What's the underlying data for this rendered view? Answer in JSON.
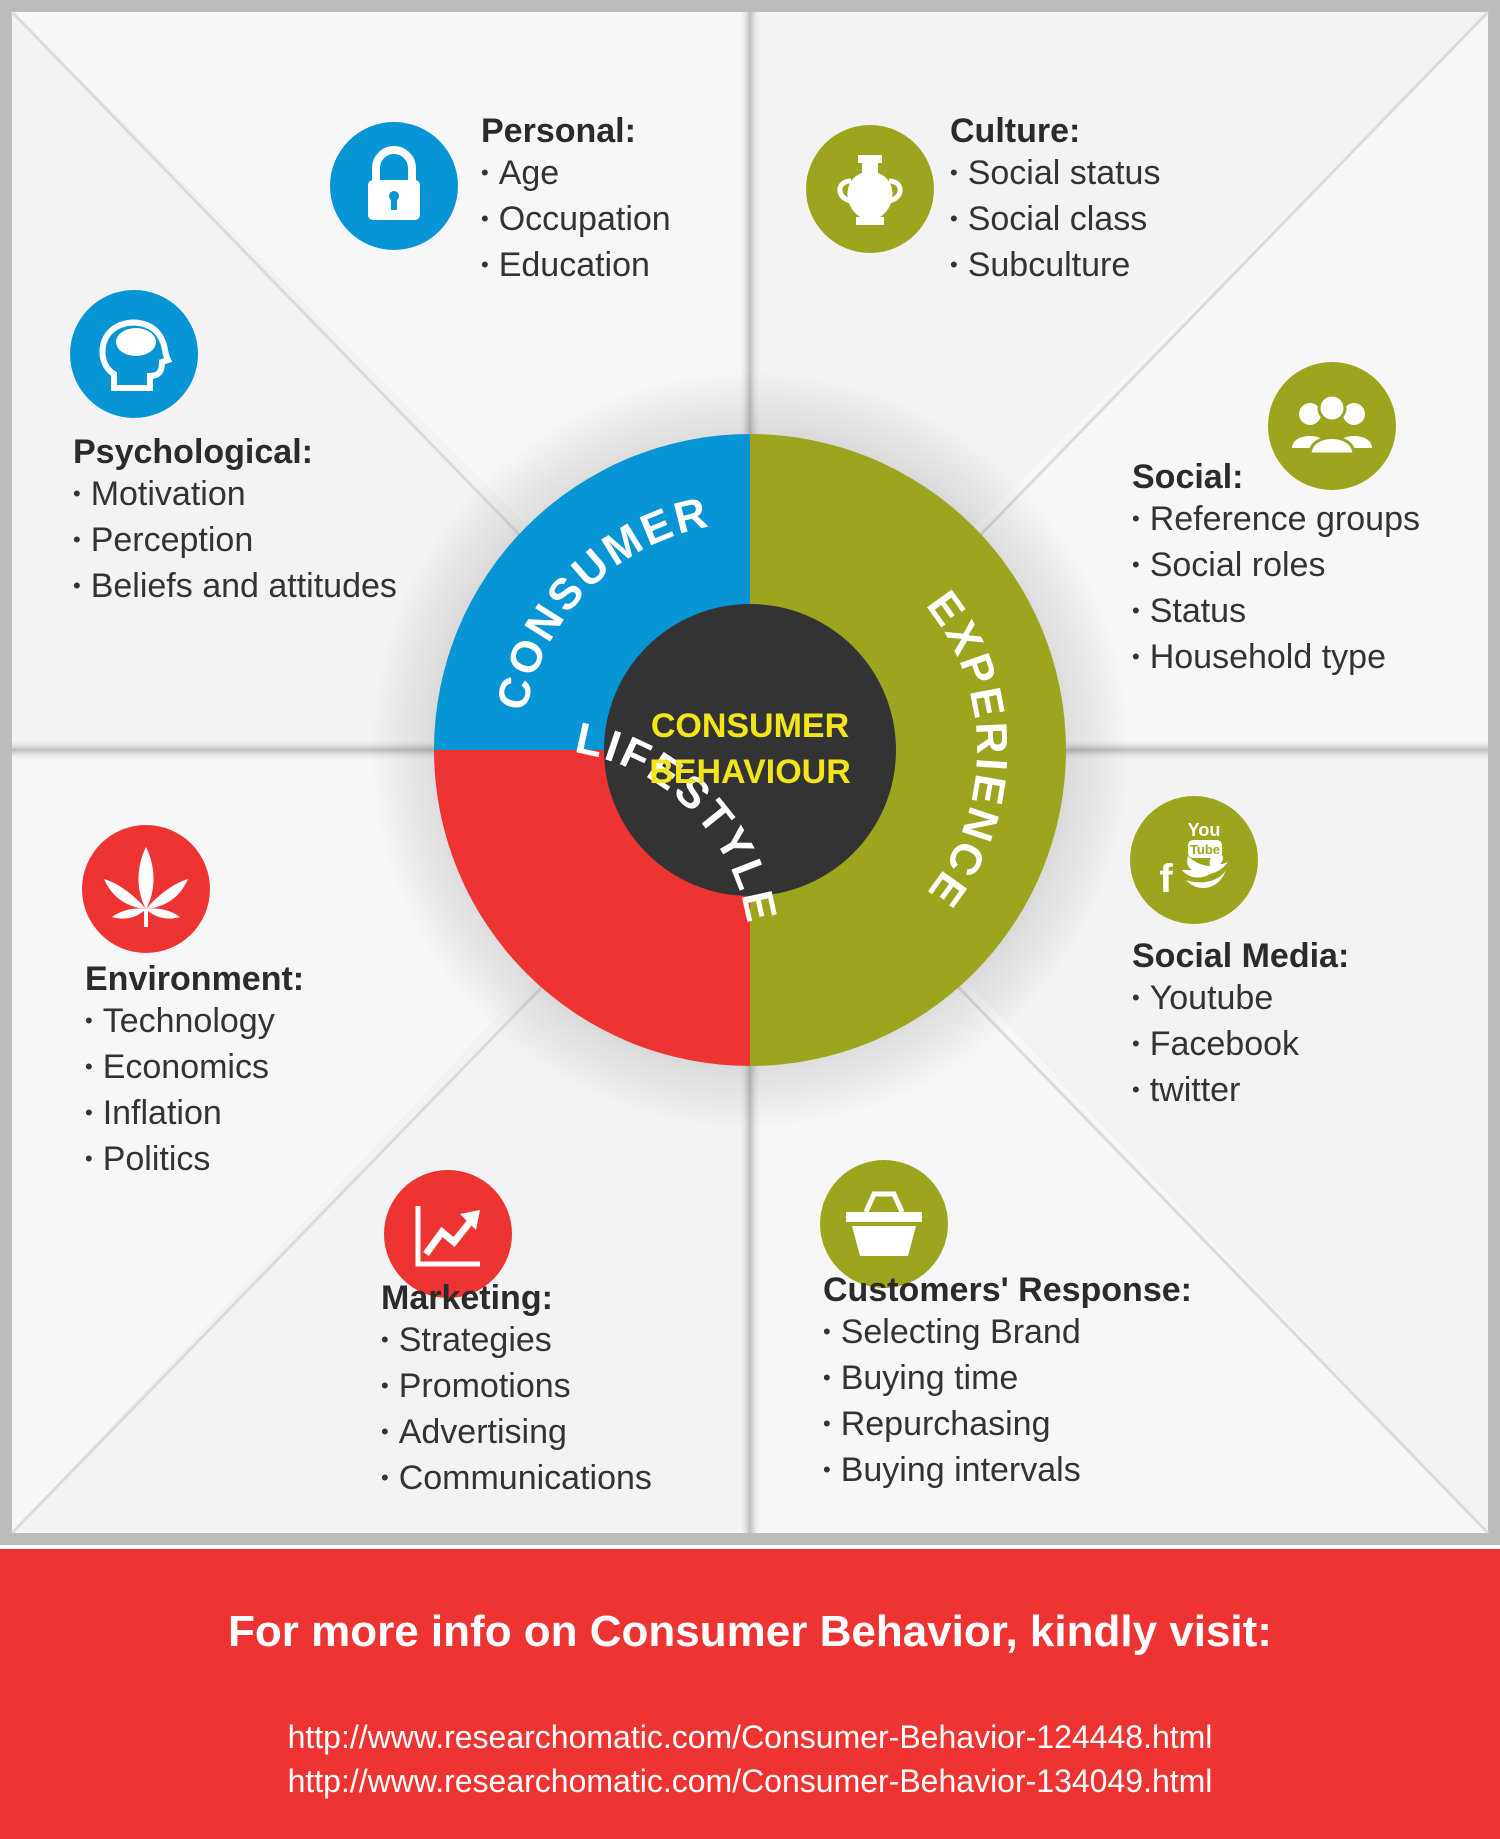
{
  "colors": {
    "blue": "#0795d6",
    "olive": "#9da51f",
    "red": "#ee3433",
    "dark": "#333333",
    "center_text": "#f2e51a"
  },
  "center": {
    "line1": "CONSUMER",
    "line2": "BEHAVIOUR",
    "ring_consumer": "CONSUMER",
    "ring_experience": "EXPERIENCE",
    "ring_lifestyle": "LIFESTYLE"
  },
  "categories": [
    {
      "title": "Personal:",
      "icon": "lock-icon",
      "items": [
        "Age",
        "Occupation",
        "Education"
      ]
    },
    {
      "title": "Culture:",
      "icon": "vase-icon",
      "items": [
        "Social status",
        "Social class",
        "Subculture"
      ]
    },
    {
      "title": "Psychological:",
      "icon": "head-brain-icon",
      "items": [
        "Motivation",
        "Perception",
        "Beliefs and attitudes"
      ]
    },
    {
      "title": "Social:",
      "icon": "people-icon",
      "items": [
        "Reference groups",
        "Social roles",
        "Status",
        "Household type"
      ]
    },
    {
      "title": "Environment:",
      "icon": "leaf-icon",
      "items": [
        "Technology",
        "Economics",
        "Inflation",
        "Politics"
      ]
    },
    {
      "title": "Social Media:",
      "icon": "social-media-icon",
      "items": [
        "Youtube",
        "Facebook",
        "twitter"
      ]
    },
    {
      "title": "Marketing:",
      "icon": "growth-chart-icon",
      "items": [
        "Strategies",
        "Promotions",
        "Advertising",
        "Communications"
      ]
    },
    {
      "title": "Customers' Response:",
      "icon": "basket-icon",
      "items": [
        "Selecting Brand",
        "Buying time",
        "Repurchasing",
        "Buying intervals"
      ]
    }
  ],
  "footer": {
    "heading": "For more info on Consumer Behavior, kindly visit:",
    "links": [
      "http://www.researchomatic.com/Consumer-Behavior-124448.html",
      "http://www.researchomatic.com/Consumer-Behavior-134049.html"
    ]
  }
}
